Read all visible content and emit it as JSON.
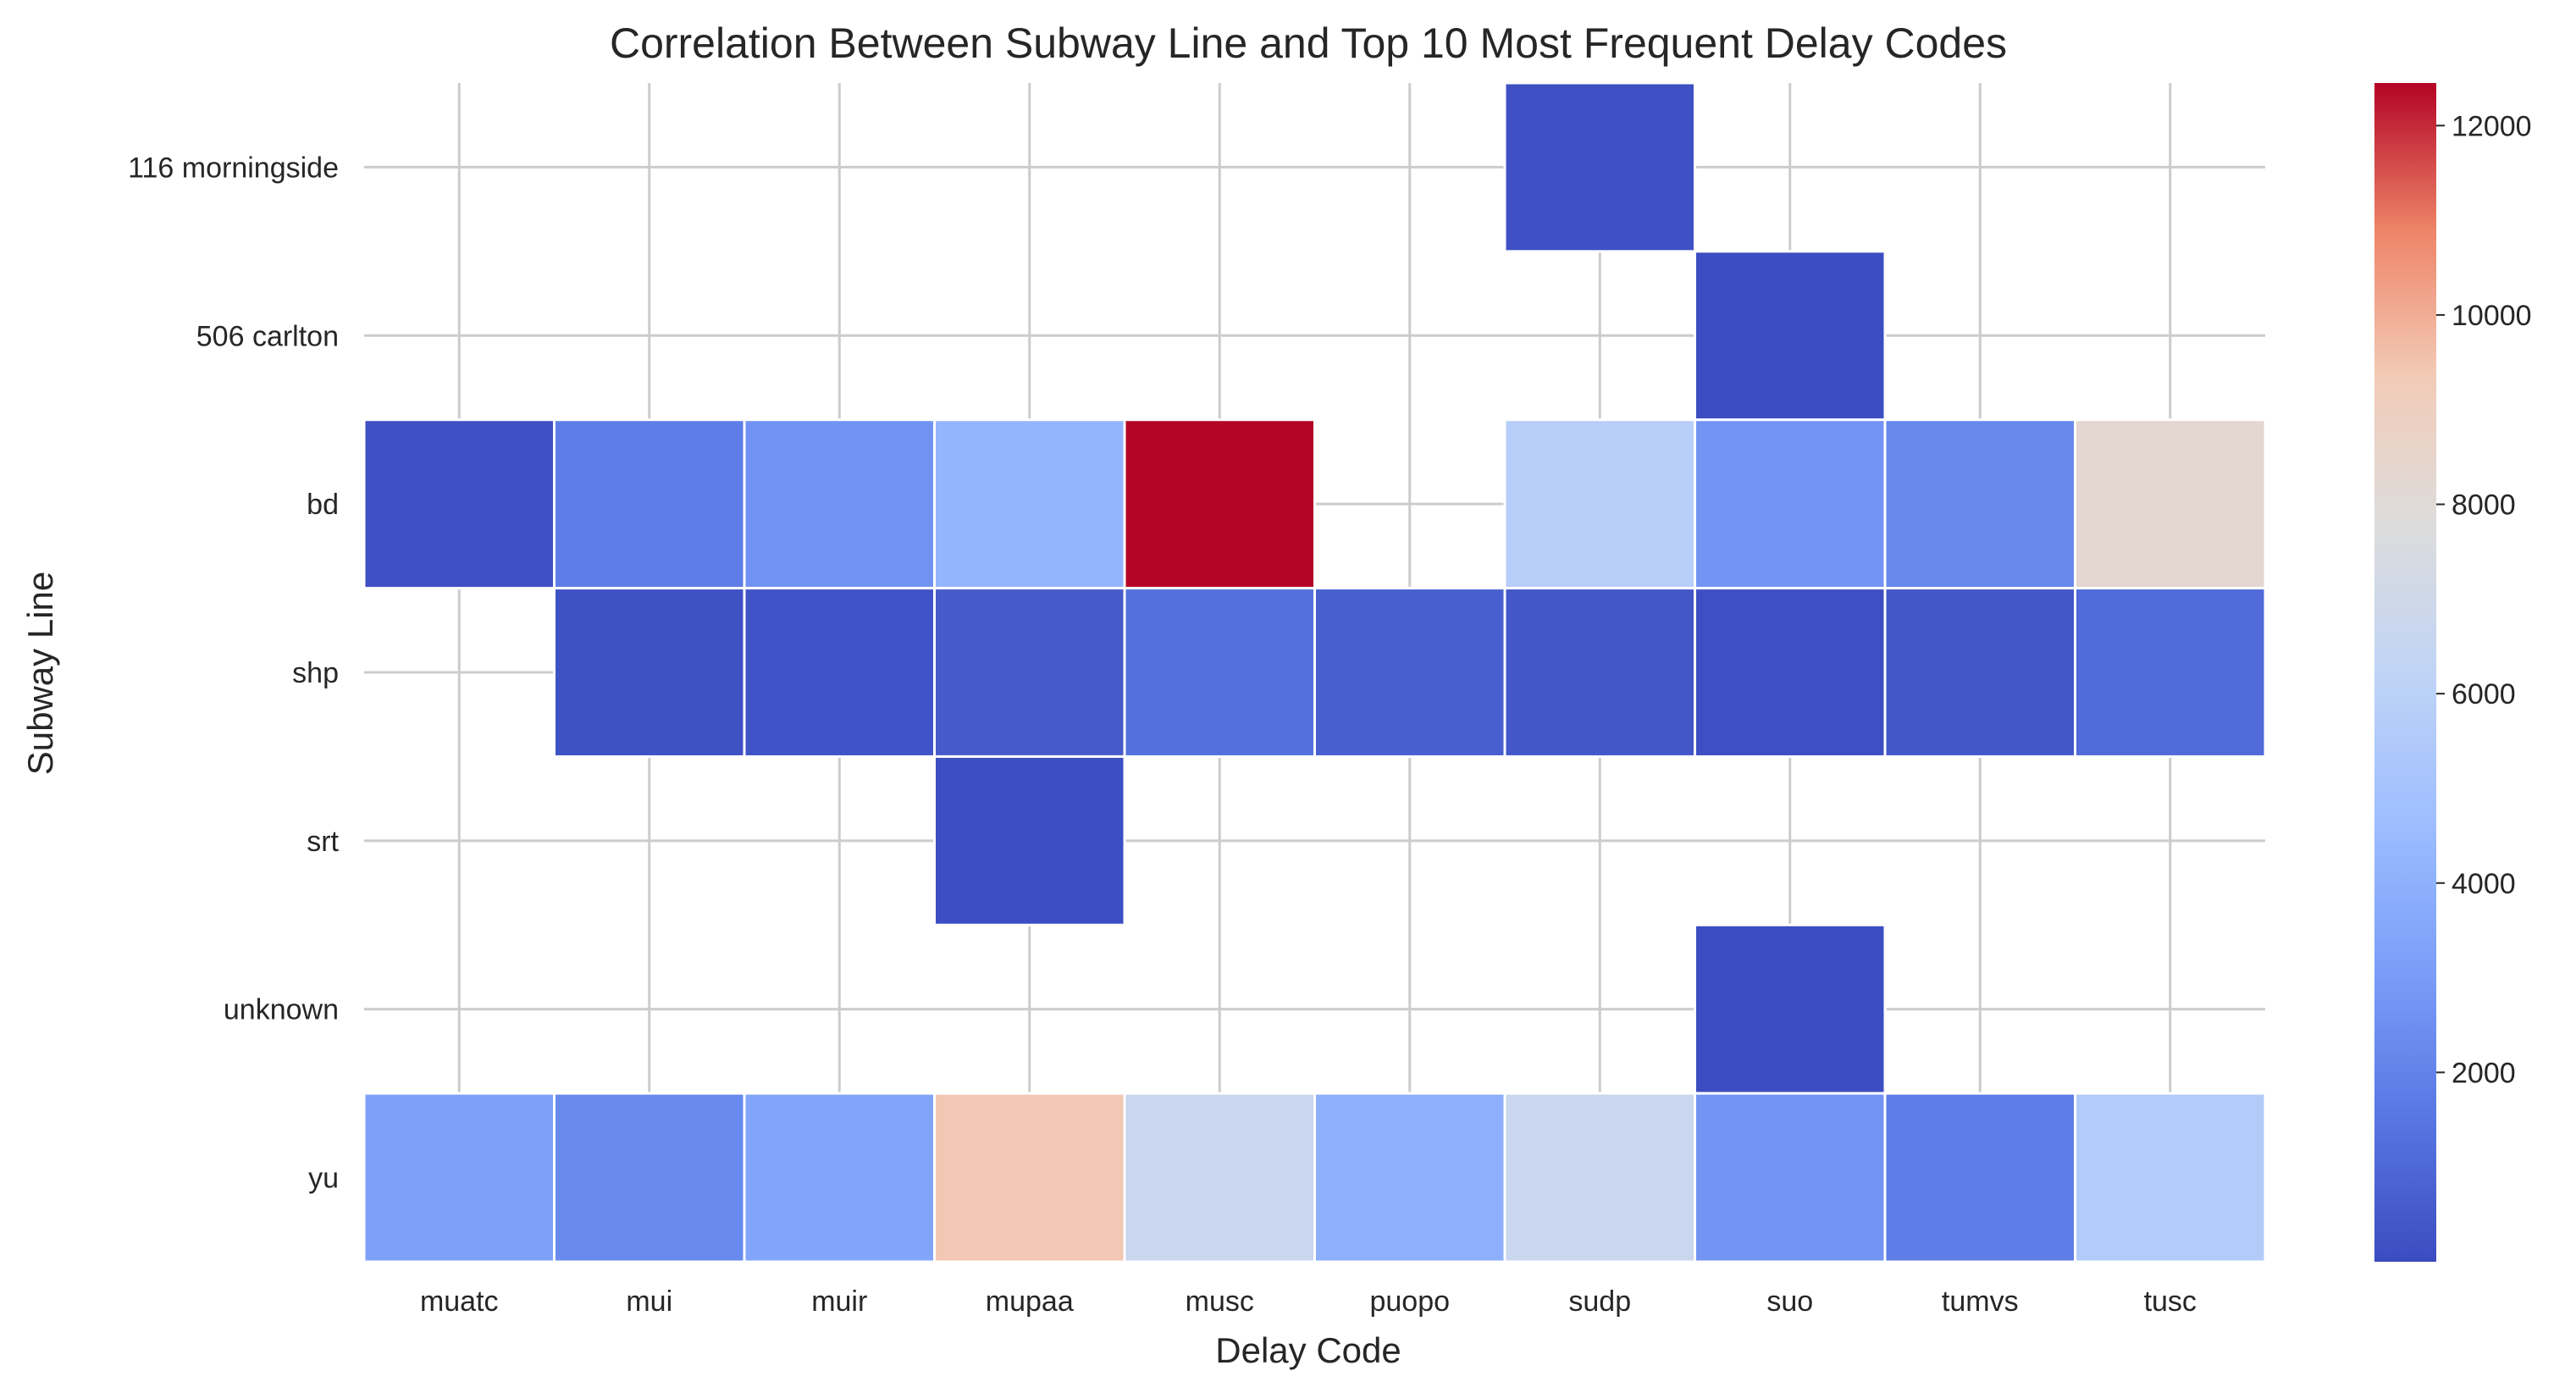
{
  "chart_data": {
    "type": "heatmap",
    "title": "Correlation Between Subway Line and Top 10 Most Frequent Delay Codes",
    "xlabel": "Delay Code",
    "ylabel": "Subway Line",
    "x_categories": [
      "muatc",
      "mui",
      "muir",
      "mupaa",
      "musc",
      "puopo",
      "sudp",
      "suo",
      "tumvs",
      "tusc"
    ],
    "y_categories": [
      "116 morningside",
      "506 carlton",
      "bd",
      "shp",
      "srt",
      "unknown",
      "yu"
    ],
    "values": [
      [
        null,
        null,
        null,
        null,
        null,
        null,
        150,
        null,
        null,
        null
      ],
      [
        null,
        null,
        null,
        null,
        null,
        null,
        null,
        50,
        null,
        null
      ],
      [
        130,
        1800,
        2600,
        4200,
        12450,
        null,
        5800,
        2700,
        2200,
        8300
      ],
      [
        null,
        200,
        250,
        500,
        1300,
        700,
        400,
        100,
        400,
        1100
      ],
      [
        null,
        null,
        null,
        70,
        null,
        null,
        null,
        null,
        null,
        null
      ],
      [
        null,
        null,
        null,
        null,
        null,
        null,
        null,
        50,
        null,
        null
      ],
      [
        3200,
        2300,
        3400,
        9400,
        6700,
        3900,
        6700,
        2700,
        1800,
        5600
      ]
    ],
    "colorbar": {
      "colormap": "coolwarm",
      "vmin": 0,
      "vmax": 12450,
      "ticks": [
        "2000",
        "4000",
        "6000",
        "8000",
        "10000",
        "12000"
      ]
    },
    "grid": true
  }
}
